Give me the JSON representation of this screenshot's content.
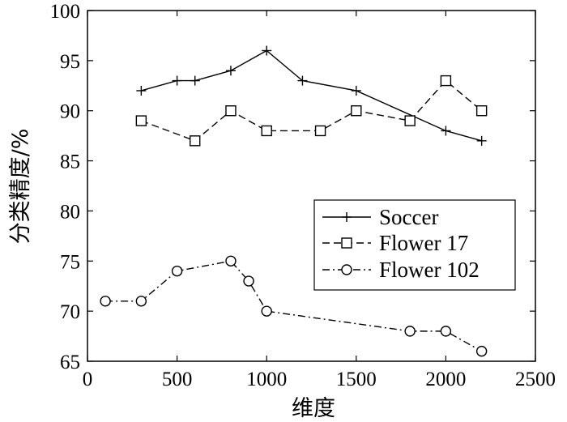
{
  "chart_data": {
    "type": "line",
    "xlabel": "维度",
    "ylabel": "分类精度/%",
    "xlim": [
      0,
      2500
    ],
    "ylim": [
      65,
      100
    ],
    "xticks": [
      0,
      500,
      1000,
      1500,
      2000,
      2500
    ],
    "yticks": [
      65,
      70,
      75,
      80,
      85,
      90,
      95,
      100
    ],
    "xtick_labels": [
      "0",
      "500",
      "1000",
      "1500",
      "2000",
      "2500"
    ],
    "ytick_labels": [
      "65",
      "70",
      "75",
      "80",
      "85",
      "90",
      "95",
      "100"
    ],
    "grid": false,
    "legend_position": "center-right",
    "series": [
      {
        "name": "Soccer",
        "marker": "plus",
        "line_style": "solid",
        "color": "#000000",
        "x": [
          300,
          500,
          600,
          800,
          1000,
          1200,
          1500,
          2000,
          2200
        ],
        "y": [
          92,
          93,
          93,
          94,
          96,
          93,
          92,
          88,
          87
        ]
      },
      {
        "name": "Flower 17",
        "marker": "square",
        "line_style": "dashed",
        "color": "#000000",
        "x": [
          300,
          600,
          800,
          1000,
          1300,
          1500,
          1800,
          2000,
          2200
        ],
        "y": [
          89,
          87,
          90,
          88,
          88,
          90,
          89,
          93,
          90
        ]
      },
      {
        "name": "Flower 102",
        "marker": "circle",
        "line_style": "dashdot",
        "color": "#000000",
        "x": [
          100,
          300,
          500,
          800,
          900,
          1000,
          1800,
          2000,
          2200
        ],
        "y": [
          71,
          71,
          74,
          75,
          73,
          70,
          68,
          68,
          66
        ]
      }
    ]
  }
}
